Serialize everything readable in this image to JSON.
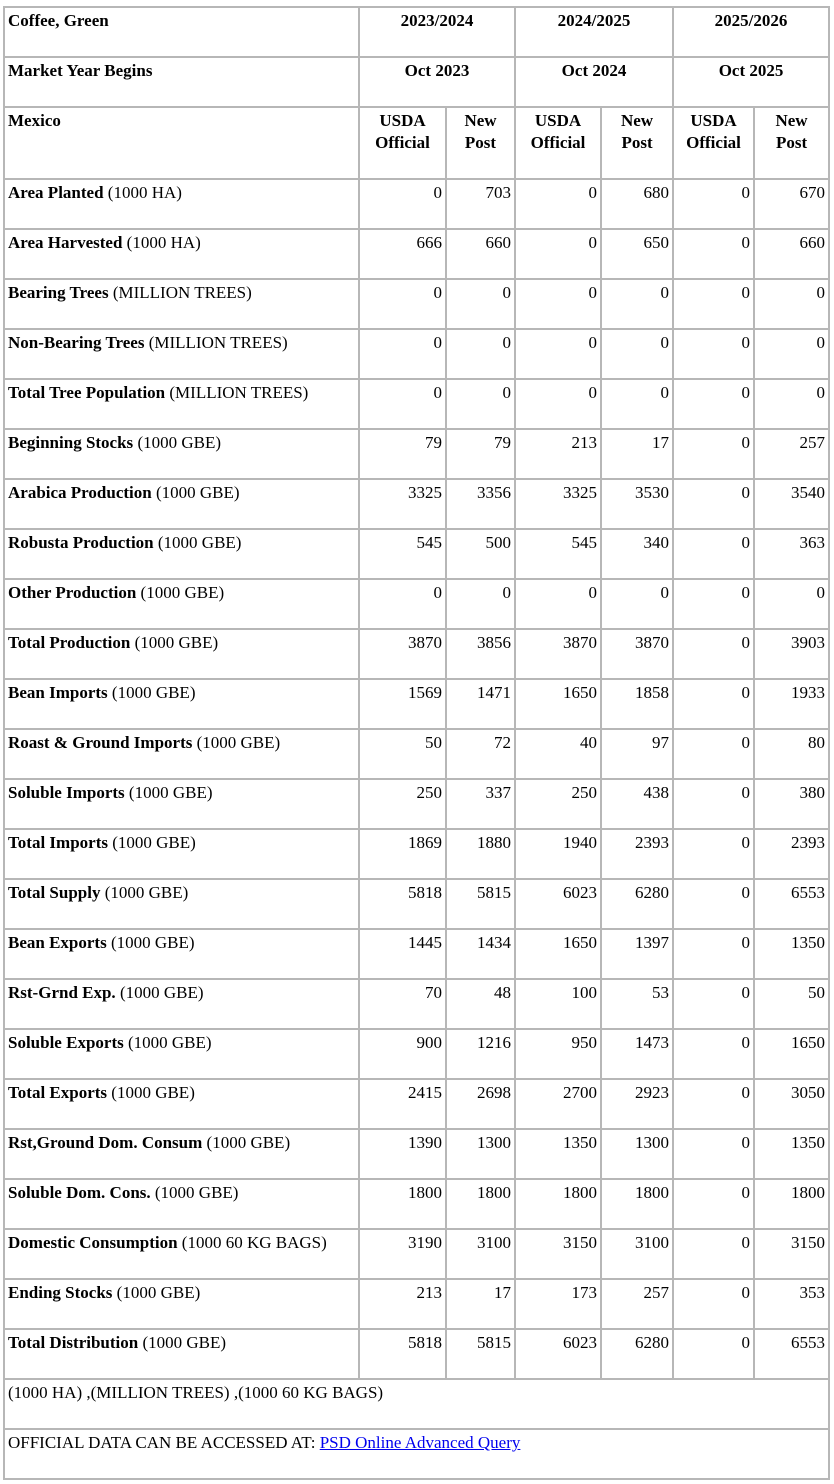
{
  "table": {
    "commodity": "Coffee, Green",
    "market_year_label": "Market Year Begins",
    "country": "Mexico",
    "year_groups": [
      {
        "year": "2023/2024",
        "begins": "Oct 2023"
      },
      {
        "year": "2024/2025",
        "begins": "Oct 2024"
      },
      {
        "year": "2025/2026",
        "begins": "Oct 2025"
      }
    ],
    "sub_headers": {
      "official": "USDA Official",
      "post": "New Post"
    },
    "rows": [
      {
        "label": "Area Planted",
        "unit": "(1000 HA)",
        "values": [
          "0",
          "703",
          "0",
          "680",
          "0",
          "670"
        ]
      },
      {
        "label": "Area Harvested",
        "unit": "(1000 HA)",
        "values": [
          "666",
          "660",
          "0",
          "650",
          "0",
          "660"
        ]
      },
      {
        "label": "Bearing Trees",
        "unit": "(MILLION TREES)",
        "values": [
          "0",
          "0",
          "0",
          "0",
          "0",
          "0"
        ]
      },
      {
        "label": "Non-Bearing Trees",
        "unit": "(MILLION TREES)",
        "values": [
          "0",
          "0",
          "0",
          "0",
          "0",
          "0"
        ]
      },
      {
        "label": "Total Tree Population",
        "unit": "(MILLION TREES)",
        "values": [
          "0",
          "0",
          "0",
          "0",
          "0",
          "0"
        ]
      },
      {
        "label": "Beginning Stocks",
        "unit": "(1000 GBE)",
        "values": [
          "79",
          "79",
          "213",
          "17",
          "0",
          "257"
        ]
      },
      {
        "label": "Arabica Production",
        "unit": "(1000 GBE)",
        "values": [
          "3325",
          "3356",
          "3325",
          "3530",
          "0",
          "3540"
        ]
      },
      {
        "label": "Robusta Production",
        "unit": "(1000 GBE)",
        "values": [
          "545",
          "500",
          "545",
          "340",
          "0",
          "363"
        ]
      },
      {
        "label": "Other Production",
        "unit": "(1000 GBE)",
        "values": [
          "0",
          "0",
          "0",
          "0",
          "0",
          "0"
        ]
      },
      {
        "label": "Total Production",
        "unit": "(1000 GBE)",
        "values": [
          "3870",
          "3856",
          "3870",
          "3870",
          "0",
          "3903"
        ]
      },
      {
        "label": "Bean Imports",
        "unit": "(1000 GBE)",
        "values": [
          "1569",
          "1471",
          "1650",
          "1858",
          "0",
          "1933"
        ]
      },
      {
        "label": "Roast & Ground Imports",
        "unit": "(1000 GBE)",
        "values": [
          "50",
          "72",
          "40",
          "97",
          "0",
          "80"
        ]
      },
      {
        "label": "Soluble Imports",
        "unit": "(1000 GBE)",
        "values": [
          "250",
          "337",
          "250",
          "438",
          "0",
          "380"
        ]
      },
      {
        "label": "Total Imports",
        "unit": "(1000 GBE)",
        "values": [
          "1869",
          "1880",
          "1940",
          "2393",
          "0",
          "2393"
        ]
      },
      {
        "label": "Total Supply",
        "unit": "(1000 GBE)",
        "values": [
          "5818",
          "5815",
          "6023",
          "6280",
          "0",
          "6553"
        ]
      },
      {
        "label": "Bean Exports",
        "unit": "(1000 GBE)",
        "values": [
          "1445",
          "1434",
          "1650",
          "1397",
          "0",
          "1350"
        ]
      },
      {
        "label": "Rst-Grnd Exp.",
        "unit": "(1000 GBE)",
        "values": [
          "70",
          "48",
          "100",
          "53",
          "0",
          "50"
        ]
      },
      {
        "label": "Soluble Exports",
        "unit": "(1000 GBE)",
        "values": [
          "900",
          "1216",
          "950",
          "1473",
          "0",
          "1650"
        ]
      },
      {
        "label": "Total Exports",
        "unit": "(1000 GBE)",
        "values": [
          "2415",
          "2698",
          "2700",
          "2923",
          "0",
          "3050"
        ]
      },
      {
        "label": "Rst,Ground Dom. Consum",
        "unit": "(1000 GBE)",
        "values": [
          "1390",
          "1300",
          "1350",
          "1300",
          "0",
          "1350"
        ]
      },
      {
        "label": "Soluble Dom. Cons.",
        "unit": "(1000 GBE)",
        "values": [
          "1800",
          "1800",
          "1800",
          "1800",
          "0",
          "1800"
        ]
      },
      {
        "label": "Domestic Consumption",
        "unit": "(1000 60 KG BAGS)",
        "values": [
          "3190",
          "3100",
          "3150",
          "3100",
          "0",
          "3150"
        ]
      },
      {
        "label": "Ending Stocks",
        "unit": "(1000 GBE)",
        "values": [
          "213",
          "17",
          "173",
          "257",
          "0",
          "353"
        ]
      },
      {
        "label": "Total Distribution",
        "unit": "(1000 GBE)",
        "values": [
          "5818",
          "5815",
          "6023",
          "6280",
          "0",
          "6553"
        ]
      }
    ],
    "footnote_units": "(1000 HA) ,(MILLION TREES) ,(1000 60 KG BAGS)",
    "official_data_text": "OFFICIAL DATA CAN BE ACCESSED AT: ",
    "link_text": "PSD Online Advanced Query"
  },
  "colors": {
    "border": "#b7b7b7",
    "link": "#0000ee",
    "text": "#000000"
  }
}
